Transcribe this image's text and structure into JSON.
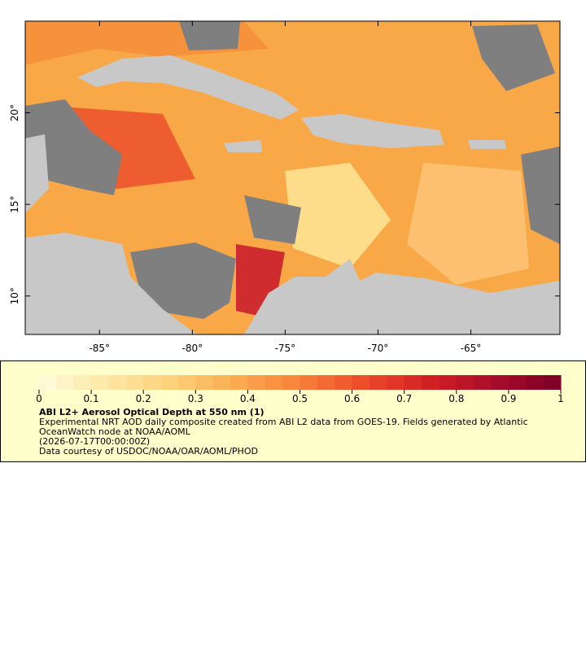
{
  "map": {
    "xlim": [
      -89,
      -60.2
    ],
    "ylim": [
      7.9,
      25
    ],
    "xticks": [
      {
        "value": -85,
        "label": "-85°"
      },
      {
        "value": -80,
        "label": "-80°"
      },
      {
        "value": -75,
        "label": "-75°"
      },
      {
        "value": -70,
        "label": "-70°"
      },
      {
        "value": -65,
        "label": "-65°"
      }
    ],
    "yticks": [
      {
        "value": 10,
        "label": "10°"
      },
      {
        "value": 15,
        "label": "15°"
      },
      {
        "value": 20,
        "label": "20°"
      }
    ]
  },
  "colorbar": {
    "lim": [
      0,
      1
    ],
    "ticks": [
      0,
      0.1,
      0.2,
      0.3,
      0.4,
      0.5,
      0.6,
      0.7,
      0.8,
      0.9,
      1
    ],
    "palette": [
      "#fffbdc",
      "#fee9a8",
      "#fdd27a",
      "#fcac52",
      "#f8803a",
      "#ee4a2a",
      "#d21f24",
      "#a80c2a",
      "#7a0028"
    ]
  },
  "legend": {
    "title": "ABI L2+ Aerosol Optical Depth at 550 nm (1)",
    "description": "Experimental NRT AOD daily composite created from ABI L2 data from GOES-19. Fields generated by Atlantic OceanWatch node at NOAA/AOML",
    "time": "(2026-07-17T00:00:00Z)",
    "credit": "Data courtesy of USDOC/NOAA/OAR/AOML/PHOD"
  }
}
